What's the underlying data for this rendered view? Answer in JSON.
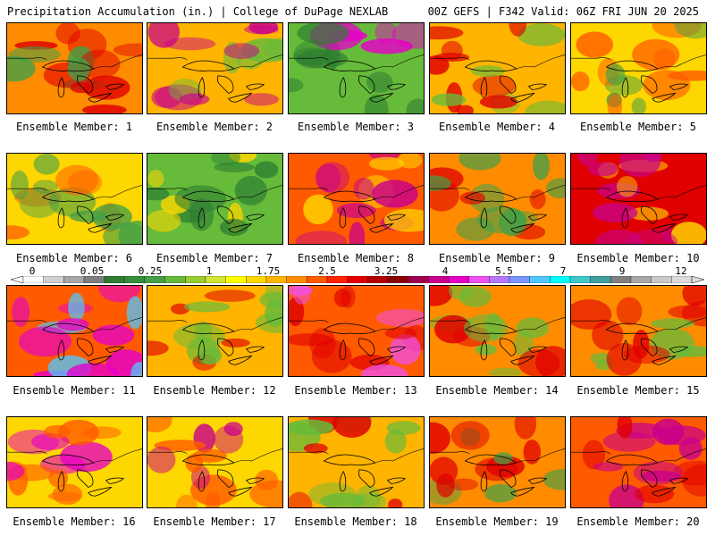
{
  "header": {
    "left_title": "Precipitation Accumulation (in.) | College of DuPage NEXLAB",
    "right_title": "00Z GEFS | F342 Valid: 06Z FRI JUN 20 2025"
  },
  "colorbar": {
    "tick_labels": [
      "0",
      "0.05",
      "0.25",
      "1",
      "1.75",
      "2.5",
      "3.25",
      "4",
      "5.5",
      "7",
      "9",
      "12"
    ],
    "colors": [
      "#ffffff",
      "#d0d0d0",
      "#a8a8a8",
      "#7f7f7f",
      "#2e7d32",
      "#388e3c",
      "#43a047",
      "#66bb3a",
      "#9acd32",
      "#cfe632",
      "#ffff00",
      "#ffd700",
      "#ffb400",
      "#ff8c00",
      "#ff5a00",
      "#ff2400",
      "#e00000",
      "#b40000",
      "#8b0000",
      "#a00050",
      "#c8008c",
      "#e600c8",
      "#f050f0",
      "#b478ff",
      "#7896ff",
      "#50c8ff",
      "#00ffff",
      "#40c8c8",
      "#40a0a0",
      "#808080",
      "#a8a8a8",
      "#c8c8c8",
      "#dcdcdc"
    ]
  },
  "members": [
    {
      "label": "Ensemble Member: 1",
      "fill": "#ff8c00",
      "accent": "#e00000",
      "accent2": "#43a047"
    },
    {
      "label": "Ensemble Member: 2",
      "fill": "#ffb400",
      "accent": "#c8008c",
      "accent2": "#66bb3a"
    },
    {
      "label": "Ensemble Member: 3",
      "fill": "#66bb3a",
      "accent": "#2e7d32",
      "accent2": "#e600c8"
    },
    {
      "label": "Ensemble Member: 4",
      "fill": "#ffb400",
      "accent": "#e00000",
      "accent2": "#66bb3a"
    },
    {
      "label": "Ensemble Member: 5",
      "fill": "#ffd700",
      "accent": "#ff5a00",
      "accent2": "#43a047"
    },
    {
      "label": "Ensemble Member: 6",
      "fill": "#ffd700",
      "accent": "#43a047",
      "accent2": "#ff5a00"
    },
    {
      "label": "Ensemble Member: 7",
      "fill": "#66bb3a",
      "accent": "#2e7d32",
      "accent2": "#ffd700"
    },
    {
      "label": "Ensemble Member: 8",
      "fill": "#ff5a00",
      "accent": "#c8008c",
      "accent2": "#ffd700"
    },
    {
      "label": "Ensemble Member: 9",
      "fill": "#ff8c00",
      "accent": "#43a047",
      "accent2": "#e00000"
    },
    {
      "label": "Ensemble Member: 10",
      "fill": "#e00000",
      "accent": "#c8008c",
      "accent2": "#ffd700"
    },
    {
      "label": "Ensemble Member: 11",
      "fill": "#ff5a00",
      "accent": "#e600c8",
      "accent2": "#50c8ff"
    },
    {
      "label": "Ensemble Member: 12",
      "fill": "#ffb400",
      "accent": "#66bb3a",
      "accent2": "#e00000"
    },
    {
      "label": "Ensemble Member: 13",
      "fill": "#ff5a00",
      "accent": "#e00000",
      "accent2": "#f050f0"
    },
    {
      "label": "Ensemble Member: 14",
      "fill": "#ff8c00",
      "accent": "#66bb3a",
      "accent2": "#e00000"
    },
    {
      "label": "Ensemble Member: 15",
      "fill": "#ff8c00",
      "accent": "#e00000",
      "accent2": "#66bb3a"
    },
    {
      "label": "Ensemble Member: 16",
      "fill": "#ffd700",
      "accent": "#ff5a00",
      "accent2": "#e600c8"
    },
    {
      "label": "Ensemble Member: 17",
      "fill": "#ffd700",
      "accent": "#ff5a00",
      "accent2": "#c8008c"
    },
    {
      "label": "Ensemble Member: 18",
      "fill": "#ffb400",
      "accent": "#66bb3a",
      "accent2": "#e00000"
    },
    {
      "label": "Ensemble Member: 19",
      "fill": "#ff8c00",
      "accent": "#e00000",
      "accent2": "#43a047"
    },
    {
      "label": "Ensemble Member: 20",
      "fill": "#ff5a00",
      "accent": "#c8008c",
      "accent2": "#e00000"
    }
  ]
}
